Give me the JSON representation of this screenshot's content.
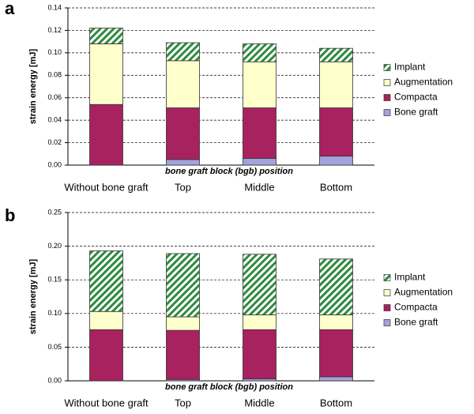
{
  "chart_data": [
    {
      "type": "bar",
      "stacked": true,
      "label": "a",
      "ylabel": "strain energy [mJ]",
      "xlabel": "bone graft block (bgb) position",
      "categories": [
        "Without bone graft",
        "Top",
        "Middle",
        "Bottom"
      ],
      "series": [
        {
          "name": "Bone graft",
          "color": "#a3a3dc",
          "values": [
            0,
            0.005,
            0.006,
            0.008
          ]
        },
        {
          "name": "Compacta",
          "color": "#a8225f",
          "values": [
            0.054,
            0.046,
            0.045,
            0.043
          ]
        },
        {
          "name": "Augmentation",
          "color": "#ffffcc",
          "values": [
            0.054,
            0.042,
            0.041,
            0.041
          ]
        },
        {
          "name": "Implant",
          "color": "#2e8b3e",
          "hatch": true,
          "values": [
            0.014,
            0.016,
            0.016,
            0.012
          ]
        }
      ],
      "ylim": [
        0,
        0.14
      ],
      "yticks": [
        {
          "value": 0,
          "label": "0.00"
        },
        0.02,
        0.04,
        0.06,
        0.08,
        {
          "value": 0.1,
          "label": "0.10"
        },
        0.12,
        0.14
      ],
      "grid": true,
      "legend": "right"
    },
    {
      "type": "bar",
      "stacked": true,
      "label": "b",
      "ylabel": "strain energy  [mJ]",
      "xlabel": "bone graft block (bgb) position",
      "categories": [
        "Without bone graft",
        "Top",
        "Middle",
        "Bottom"
      ],
      "series": [
        {
          "name": "Bone graft",
          "color": "#a3a3dc",
          "values": [
            0,
            0.002,
            0.003,
            0.006
          ]
        },
        {
          "name": "Compacta",
          "color": "#a8225f",
          "values": [
            0.076,
            0.073,
            0.073,
            0.07
          ]
        },
        {
          "name": "Augmentation",
          "color": "#ffffcc",
          "values": [
            0.027,
            0.02,
            0.022,
            0.022
          ]
        },
        {
          "name": "Implant",
          "color": "#2e8b3e",
          "hatch": true,
          "values": [
            0.09,
            0.094,
            0.09,
            0.083
          ]
        }
      ],
      "ylim": [
        0,
        0.25
      ],
      "yticks": [
        {
          "value": 0,
          "label": "0.00"
        },
        0.05,
        {
          "value": 0.1,
          "label": "0.10"
        },
        0.15,
        {
          "value": 0.2,
          "label": "0.20"
        },
        0.25
      ],
      "grid": true,
      "legend": "right"
    }
  ]
}
